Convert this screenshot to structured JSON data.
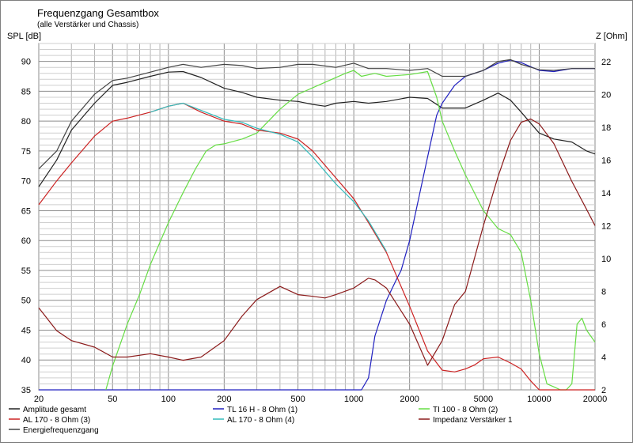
{
  "chart_data": {
    "type": "line",
    "title": "Frequenzgang Gesamtbox",
    "subtitle": "(alle Verstärker und Chassis)",
    "ylabel": "SPL [dB]",
    "y2label": "Z [Ohm]",
    "xscale": "log",
    "xlim": [
      20,
      20000
    ],
    "ylim": [
      35,
      93
    ],
    "y2lim": [
      2,
      23.1
    ],
    "grid": true,
    "x_ticks": [
      20,
      50,
      100,
      200,
      500,
      1000,
      2000,
      5000,
      10000,
      20000
    ],
    "y_ticks": [
      35,
      40,
      45,
      50,
      55,
      60,
      65,
      70,
      75,
      80,
      85,
      90
    ],
    "y2_ticks": [
      2,
      4,
      6,
      8,
      10,
      12,
      14,
      16,
      18,
      20,
      22
    ],
    "legend_position": "bottom",
    "series": [
      {
        "name": "Amplitude gesamt",
        "axis": "left",
        "color": "#222222",
        "x": [
          20,
          25,
          30,
          40,
          50,
          60,
          80,
          100,
          120,
          150,
          200,
          250,
          300,
          400,
          500,
          600,
          700,
          800,
          1000,
          1200,
          1500,
          2000,
          2500,
          3000,
          4000,
          5000,
          6000,
          7000,
          8000,
          10000,
          12000,
          15000,
          18000,
          20000
        ],
        "y": [
          69,
          73.5,
          78.5,
          83,
          86,
          86.5,
          87.5,
          88.2,
          88.3,
          87.3,
          85.5,
          84.8,
          84,
          83.5,
          83.3,
          82.8,
          82.5,
          83,
          83.3,
          83,
          83.3,
          84,
          83.8,
          82.2,
          82.2,
          83.5,
          84.7,
          83.5,
          81.5,
          78,
          77,
          76.5,
          75,
          74.5
        ]
      },
      {
        "name": "TL 16 H - 8 Ohm (1)",
        "axis": "left",
        "color": "#2020c0",
        "x": [
          20,
          1100,
          1200,
          1300,
          1500,
          1700,
          1800,
          2000,
          2200,
          2500,
          2800,
          3000,
          3500,
          4000,
          5000,
          6000,
          7000,
          8000,
          10000,
          12000,
          15000,
          20000
        ],
        "y": [
          35,
          35,
          37,
          44,
          50,
          53.5,
          55,
          60,
          66,
          74,
          81,
          83,
          86,
          87.5,
          88.5,
          89.7,
          90.2,
          89.8,
          88.5,
          88.3,
          88.8,
          88.8
        ]
      },
      {
        "name": "TI 100 - 8 Ohm (2)",
        "axis": "left",
        "color": "#66dd44",
        "x": [
          46,
          50,
          60,
          70,
          80,
          100,
          120,
          140,
          160,
          180,
          200,
          250,
          300,
          400,
          500,
          700,
          900,
          1000,
          1100,
          1300,
          1500,
          2000,
          2500,
          2800,
          3000,
          3500,
          4000,
          5000,
          6000,
          7000,
          8000,
          9000,
          10000,
          11000,
          12000,
          13000,
          14000,
          15000,
          16000,
          17000,
          18000,
          20000
        ],
        "y": [
          35,
          39,
          46,
          51,
          56,
          63,
          68,
          72,
          75,
          76,
          76.2,
          77,
          78,
          82,
          84.5,
          86.5,
          88,
          88.5,
          87.5,
          88,
          87.5,
          87.8,
          88.3,
          84,
          80,
          75,
          71,
          65,
          62,
          61,
          58,
          50,
          41,
          36,
          35.5,
          35,
          35,
          36,
          46,
          47,
          45,
          43
        ]
      },
      {
        "name": "AL 170 - 8 Ohm (3)",
        "axis": "left",
        "color": "#cc2222",
        "x": [
          20,
          25,
          30,
          40,
          50,
          60,
          80,
          100,
          120,
          150,
          200,
          250,
          300,
          400,
          500,
          600,
          800,
          1000,
          1200,
          1500,
          2000,
          2500,
          3000,
          3500,
          4000,
          4500,
          5000,
          6000,
          7000,
          8000,
          9000,
          10000,
          12000,
          15000,
          20000
        ],
        "y": [
          66,
          70,
          73,
          77.5,
          80,
          80.5,
          81.5,
          82.5,
          83,
          81.5,
          80,
          79.5,
          78.5,
          78,
          77,
          75,
          70.5,
          67,
          63,
          58,
          49,
          41.5,
          38.3,
          38,
          38.5,
          39.2,
          40.2,
          40.5,
          39.5,
          38.5,
          36.5,
          35,
          35,
          35,
          35
        ]
      },
      {
        "name": "AL 170 - 8 Ohm (4)",
        "axis": "left",
        "color": "#33bbbb",
        "x": [
          80,
          100,
          120,
          150,
          200,
          250,
          300,
          400,
          500,
          600,
          800,
          1000,
          1200,
          1500
        ],
        "y": [
          81.5,
          82.5,
          83,
          81.8,
          80.3,
          79.8,
          78.8,
          77.8,
          76.5,
          74,
          69.5,
          66.5,
          63.3,
          58.2
        ]
      },
      {
        "name": "Impedanz Verstärker 1",
        "axis": "right",
        "color": "#8b1a1a",
        "x": [
          20,
          25,
          30,
          40,
          50,
          60,
          80,
          100,
          120,
          150,
          200,
          250,
          300,
          400,
          500,
          600,
          700,
          800,
          1000,
          1200,
          1300,
          1500,
          2000,
          2500,
          3000,
          3500,
          4000,
          5000,
          6000,
          7000,
          8000,
          9000,
          10000,
          12000,
          15000,
          18000,
          20000
        ],
        "y": [
          7.0,
          5.6,
          5.0,
          4.6,
          4.0,
          4.0,
          4.2,
          4.0,
          3.8,
          4.0,
          5.0,
          6.5,
          7.5,
          8.3,
          7.8,
          7.7,
          7.6,
          7.8,
          8.2,
          8.8,
          8.7,
          8.2,
          6.0,
          3.5,
          5.0,
          7.2,
          8.0,
          12.0,
          15.0,
          17.2,
          18.3,
          18.5,
          18.2,
          17.0,
          14.7,
          13.0,
          12.0
        ]
      },
      {
        "name": "Energiefrequenzgang",
        "axis": "left",
        "color": "#444444",
        "x": [
          20,
          25,
          30,
          40,
          50,
          60,
          80,
          100,
          120,
          150,
          200,
          250,
          300,
          400,
          500,
          600,
          800,
          1000,
          1200,
          1500,
          2000,
          2500,
          3000,
          4000,
          5000,
          6000,
          7000,
          8000,
          10000,
          12000,
          15000,
          18000,
          20000
        ],
        "y": [
          72,
          75,
          80,
          84.5,
          86.8,
          87.2,
          88.2,
          89,
          89.5,
          89,
          89.5,
          89.3,
          88.8,
          89,
          89.5,
          89.5,
          89,
          89.7,
          88.8,
          88.8,
          88.5,
          88.8,
          87.5,
          87.5,
          88.5,
          90,
          90.3,
          89.5,
          88.6,
          88.5,
          88.8,
          88.8,
          88.8
        ]
      }
    ]
  }
}
